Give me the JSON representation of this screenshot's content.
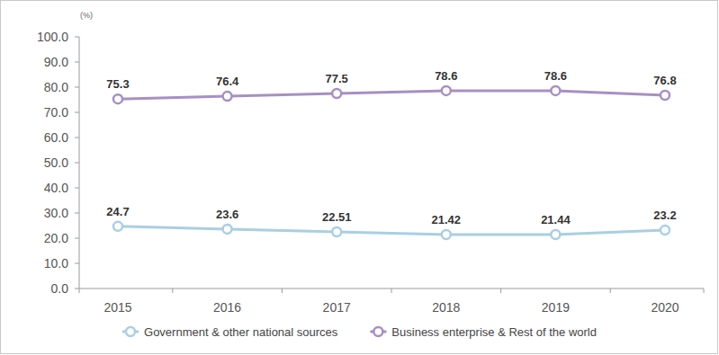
{
  "chart_data": {
    "type": "line",
    "ylabel": "(%)",
    "categories": [
      "2015",
      "2016",
      "2017",
      "2018",
      "2019",
      "2020"
    ],
    "series": [
      {
        "name": "Government & other national sources",
        "color": "#a9cfe3",
        "marker": "circle",
        "values": [
          24.7,
          23.6,
          22.51,
          21.42,
          21.44,
          23.2
        ]
      },
      {
        "name": "Business enterprise & Rest of the world",
        "color": "#a78fc4",
        "marker": "circle",
        "values": [
          75.3,
          76.4,
          77.5,
          78.6,
          78.6,
          76.8
        ]
      }
    ],
    "ylim": [
      0,
      100
    ],
    "yticks": [
      {
        "value": 0,
        "label": "0.0"
      },
      {
        "value": 10,
        "label": "10.0"
      },
      {
        "value": 20,
        "label": "20.0"
      },
      {
        "value": 30,
        "label": "30.0"
      },
      {
        "value": 40,
        "label": "40.0"
      },
      {
        "value": 50,
        "label": "50.0"
      },
      {
        "value": 60,
        "label": "60.0"
      },
      {
        "value": 70,
        "label": "70.0"
      },
      {
        "value": 80,
        "label": "80.0"
      },
      {
        "value": 90,
        "label": "90.0"
      },
      {
        "value": 100,
        "label": "100.0"
      }
    ],
    "grid": false,
    "legend": "bottom",
    "data_labels": true
  }
}
